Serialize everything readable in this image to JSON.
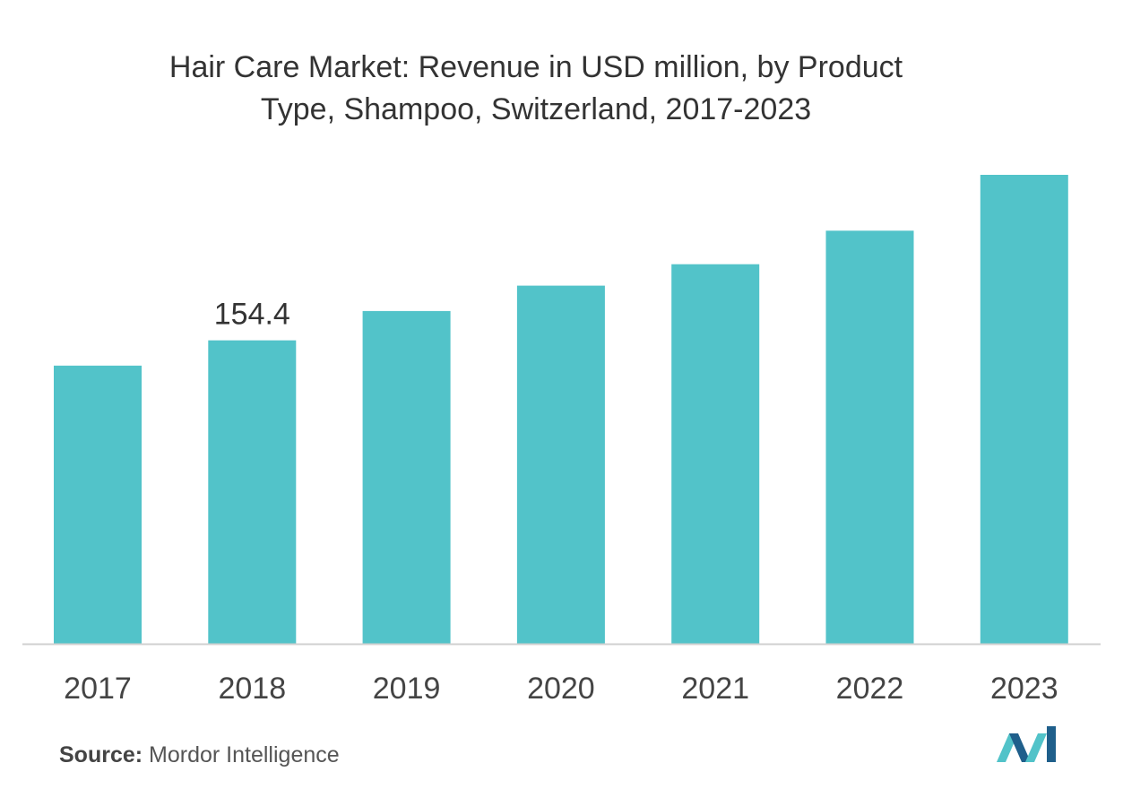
{
  "chart_data": {
    "type": "bar",
    "title_line1": "Hair Care Market: Revenue in USD million, by Product",
    "title_line2": "Type, Shampoo, Switzerland, 2017-2023",
    "categories": [
      "2017",
      "2018",
      "2019",
      "2020",
      "2021",
      "2022",
      "2023"
    ],
    "values": [
      141.5,
      154.4,
      169.3,
      182.2,
      193.1,
      210.2,
      238.6
    ],
    "value_labels": [
      null,
      "154.4",
      null,
      null,
      null,
      null,
      null
    ],
    "xlabel": "",
    "ylabel": "",
    "ylim": [
      0,
      238.6
    ],
    "grid": false,
    "legend": "none",
    "bar_color": "#52c3c9",
    "axis_color": "#d0d0d0"
  },
  "source": {
    "label": "Source:",
    "text": "Mordor Intelligence"
  },
  "logo": {
    "icon": "mordor-intelligence-logo-icon",
    "color_dark": "#1f5f8b",
    "color_light": "#52c3c9"
  }
}
